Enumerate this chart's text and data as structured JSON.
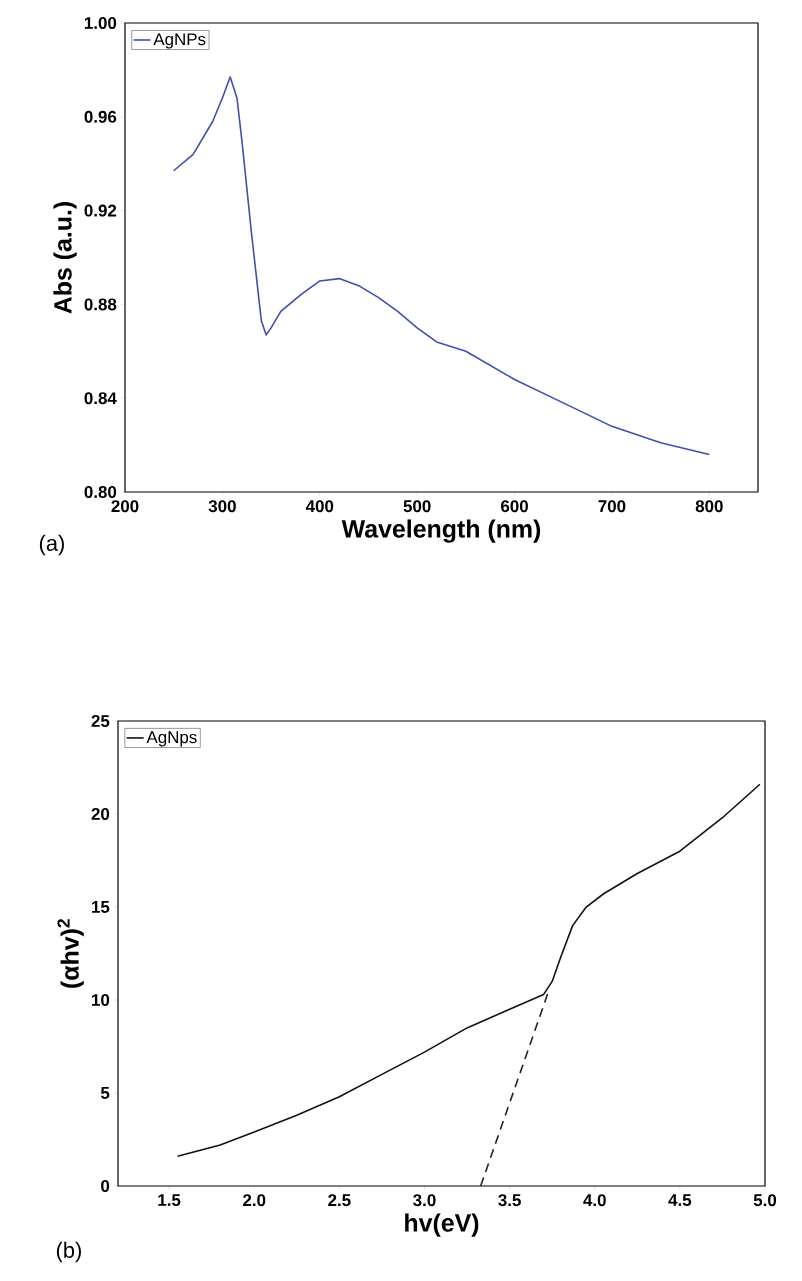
{
  "chart_data": [
    {
      "type": "line",
      "xlabel": "Wavelength (nm)",
      "ylabel": "Abs (a.u.)",
      "annotations": [
        "(a)"
      ],
      "xlim": [
        200,
        850
      ],
      "ylim": [
        0.8,
        1.0
      ],
      "xticks": [
        200,
        300,
        400,
        500,
        600,
        700,
        800
      ],
      "yticks": [
        {
          "value": 0.8,
          "label": "0.80"
        },
        {
          "value": 0.84,
          "label": "0.84"
        },
        {
          "value": 0.88,
          "label": "0.88"
        },
        {
          "value": 0.92,
          "label": "0.92"
        },
        {
          "value": 0.96,
          "label": "0.96"
        },
        {
          "value": 1.0,
          "label": "1.00"
        }
      ],
      "grid": false,
      "legend": "top left",
      "marker": "none",
      "line_style": "solid",
      "series": [
        {
          "name": "AgNPs",
          "color": "#3f4fb0",
          "x": [
            250,
            270,
            290,
            300,
            308,
            315,
            320,
            330,
            340,
            345,
            350,
            360,
            380,
            400,
            420,
            440,
            460,
            480,
            500,
            520,
            550,
            600,
            650,
            700,
            750,
            800
          ],
          "values": [
            0.937,
            0.944,
            0.958,
            0.968,
            0.977,
            0.968,
            0.95,
            0.91,
            0.873,
            0.867,
            0.87,
            0.877,
            0.884,
            0.89,
            0.891,
            0.888,
            0.883,
            0.877,
            0.87,
            0.864,
            0.86,
            0.848,
            0.838,
            0.828,
            0.821,
            0.816
          ]
        }
      ]
    },
    {
      "type": "line",
      "xlabel": "hv(eV)",
      "ylabel": "(αhv)$^{2}$",
      "annotations": [
        "(b)"
      ],
      "xlim": [
        1.2,
        5.0
      ],
      "ylim": [
        0,
        25
      ],
      "xticks": [
        {
          "value": 1.5,
          "label": "1.5"
        },
        {
          "value": 2.0,
          "label": "2.0"
        },
        {
          "value": 2.5,
          "label": "2.5"
        },
        {
          "value": 3.0,
          "label": "3.0"
        },
        {
          "value": 3.5,
          "label": "3.5"
        },
        {
          "value": 4.0,
          "label": "4.0"
        },
        {
          "value": 4.5,
          "label": "4.5"
        },
        {
          "value": 5.0,
          "label": "5.0"
        }
      ],
      "yticks": [
        0,
        5,
        10,
        15,
        20,
        25
      ],
      "grid": false,
      "legend": "top left",
      "marker": "none",
      "line_style": "solid",
      "series": [
        {
          "name": "AgNps",
          "color": "#111111",
          "x": [
            1.55,
            1.8,
            2.0,
            2.25,
            2.5,
            2.75,
            3.0,
            3.25,
            3.5,
            3.7,
            3.75,
            3.8,
            3.87,
            3.95,
            4.05,
            4.25,
            4.5,
            4.75,
            4.97
          ],
          "values": [
            1.6,
            2.2,
            2.9,
            3.8,
            4.8,
            6.0,
            7.2,
            8.5,
            9.5,
            10.3,
            11.0,
            12.3,
            14.0,
            15.0,
            15.7,
            16.8,
            18.0,
            19.8,
            21.6
          ]
        },
        {
          "color": "#222222",
          "line_style": "dashed",
          "x": [
            3.33,
            3.73
          ],
          "values": [
            0,
            10.5
          ]
        }
      ]
    }
  ]
}
